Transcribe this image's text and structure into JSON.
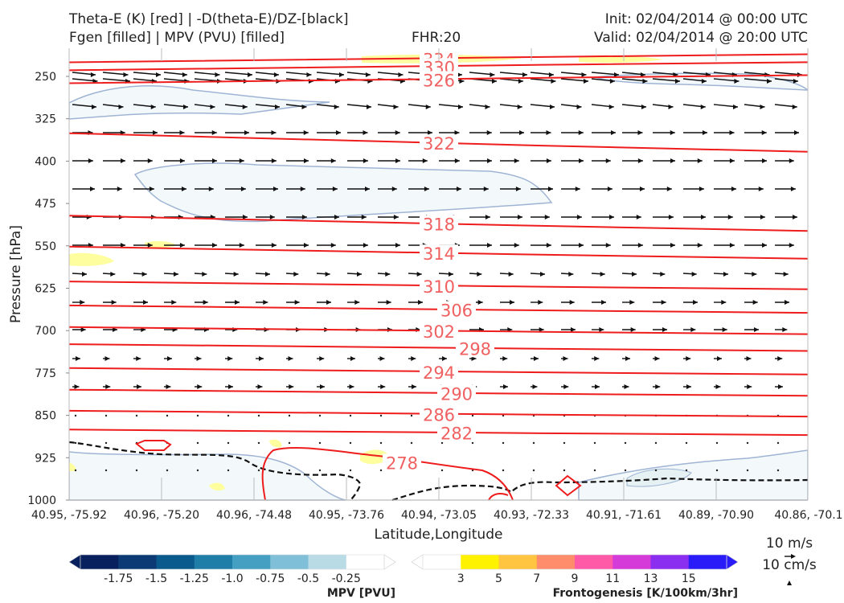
{
  "header": {
    "title_line1": "Theta-E (K) [red] | -D(theta-E)/DZ-[black]",
    "title_line2": "Fgen [filled] | MPV (PVU) [filled]",
    "fhr": "FHR:20",
    "init": "Init: 02/04/2014 @ 00:00 UTC",
    "valid": "Valid: 02/04/2014 @ 20:00 UTC"
  },
  "chart_data": {
    "type": "cross-section",
    "ylabel": "Pressure [hPa]",
    "xlabel": "Latitude,Longitude",
    "y_inverted": true,
    "y_ticks": [
      250,
      325,
      400,
      475,
      550,
      625,
      700,
      775,
      850,
      925,
      1000
    ],
    "x_tick_labels": [
      "40.95, -75.92",
      "40.96, -75.20",
      "40.96, -74.48",
      "40.95, -73.76",
      "40.94, -73.05",
      "40.93, -72.33",
      "40.91, -71.61",
      "40.89, -70.90",
      "40.86, -70.1"
    ],
    "theta_e_contours": [
      {
        "label": "334",
        "p": 218
      },
      {
        "label": "330",
        "p": 232
      },
      {
        "label": "326",
        "p": 255
      },
      {
        "label": "322",
        "p": 367
      },
      {
        "label": "318",
        "p": 510
      },
      {
        "label": "314",
        "p": 562
      },
      {
        "label": "310",
        "p": 620
      },
      {
        "label": "306",
        "p": 662
      },
      {
        "label": "302",
        "p": 700
      },
      {
        "label": "298",
        "p": 730
      },
      {
        "label": "294",
        "p": 772
      },
      {
        "label": "290",
        "p": 810
      },
      {
        "label": "286",
        "p": 847
      },
      {
        "label": "282",
        "p": 880
      },
      {
        "label": "278",
        "p": 938
      }
    ],
    "wind_reference": {
      "label_u": "10 m/s",
      "label_w": "10 cm/s"
    },
    "colorbars": [
      {
        "label": "MPV [PVU]",
        "ticks": [
          "-1.75",
          "-1.5",
          "-1.25",
          "-1.0",
          "-0.75",
          "-0.5",
          "-0.25"
        ],
        "colors": [
          "#08215e",
          "#0c3a74",
          "#0a5a8e",
          "#1f7ea8",
          "#459fc2",
          "#7fbfd7",
          "#b9dbe6",
          "#ffffff"
        ]
      },
      {
        "label": "Frontogenesis [K/100km/3hr]",
        "ticks": [
          "3",
          "5",
          "7",
          "9",
          "11",
          "13",
          "15"
        ],
        "colors": [
          "#ffffff",
          "#fff200",
          "#ffc440",
          "#ff8c6a",
          "#ff5aa8",
          "#d53bd8",
          "#8a2ef0",
          "#2a1cf8"
        ]
      }
    ]
  }
}
